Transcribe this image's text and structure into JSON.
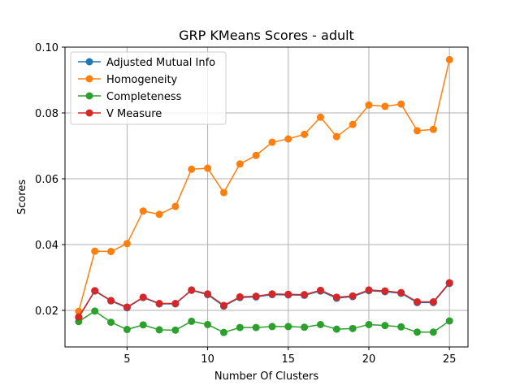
{
  "chart_data": {
    "type": "line",
    "title": "GRP KMeans Scores - adult",
    "xlabel": "Number Of Clusters",
    "ylabel": "Scores",
    "xlim": [
      1.15,
      26.15
    ],
    "ylim": [
      0.0089,
      0.1
    ],
    "xticks": [
      5,
      10,
      15,
      20,
      25
    ],
    "yticks": [
      0.02,
      0.04,
      0.06,
      0.08,
      0.1
    ],
    "ytick_labels": [
      "0.02",
      "0.04",
      "0.06",
      "0.08",
      "0.10"
    ],
    "grid": true,
    "legend_position": "upper-left",
    "x": [
      2,
      3,
      4,
      5,
      6,
      7,
      8,
      9,
      10,
      11,
      12,
      13,
      14,
      15,
      16,
      17,
      18,
      19,
      20,
      21,
      22,
      23,
      24,
      25
    ],
    "series": [
      {
        "name": "Adjusted Mutual Info",
        "color": "#1f77b4",
        "values": [
          0.0178,
          0.0259,
          0.0229,
          0.0208,
          0.0239,
          0.022,
          0.022,
          0.0261,
          0.0248,
          0.0213,
          0.0239,
          0.0241,
          0.0248,
          0.0247,
          0.0246,
          0.0259,
          0.0237,
          0.0242,
          0.026,
          0.0257,
          0.0252,
          0.0224,
          0.0224,
          0.0282
        ]
      },
      {
        "name": "Homogeneity",
        "color": "#ff7f0e",
        "values": [
          0.0197,
          0.038,
          0.0379,
          0.0403,
          0.0502,
          0.0492,
          0.0516,
          0.0629,
          0.0632,
          0.0558,
          0.0645,
          0.0671,
          0.0711,
          0.0721,
          0.0735,
          0.0787,
          0.0728,
          0.0765,
          0.0824,
          0.082,
          0.0827,
          0.0746,
          0.075,
          0.0962
        ]
      },
      {
        "name": "Completeness",
        "color": "#2ca02c",
        "values": [
          0.0166,
          0.0198,
          0.0164,
          0.0142,
          0.0156,
          0.0141,
          0.014,
          0.0167,
          0.0157,
          0.0133,
          0.0148,
          0.0148,
          0.0151,
          0.0151,
          0.0149,
          0.0157,
          0.0143,
          0.0145,
          0.0157,
          0.0154,
          0.015,
          0.0134,
          0.0134,
          0.0168
        ]
      },
      {
        "name": "V Measure",
        "color": "#d62728",
        "values": [
          0.018,
          0.026,
          0.023,
          0.021,
          0.024,
          0.0221,
          0.0221,
          0.0262,
          0.025,
          0.0215,
          0.0241,
          0.0243,
          0.025,
          0.0249,
          0.0248,
          0.0261,
          0.024,
          0.0244,
          0.0262,
          0.0259,
          0.0254,
          0.0226,
          0.0226,
          0.0284
        ]
      }
    ]
  }
}
